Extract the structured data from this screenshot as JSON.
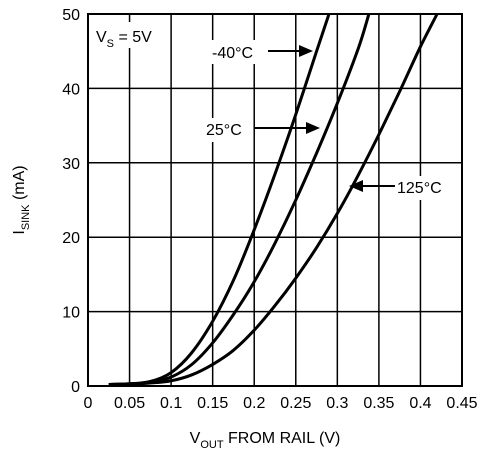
{
  "chart_data": {
    "type": "line",
    "xlim": [
      0,
      0.45
    ],
    "ylim": [
      0,
      50
    ],
    "x_ticks": [
      "0",
      "0.05",
      "0.1",
      "0.15",
      "0.2",
      "0.25",
      "0.3",
      "0.35",
      "0.4",
      "0.45"
    ],
    "y_ticks": [
      "0",
      "10",
      "20",
      "30",
      "40",
      "50"
    ],
    "xlabel": {
      "main": "V",
      "sub": "OUT",
      "rest": " FROM RAIL (V)"
    },
    "ylabel": {
      "main": "I",
      "sub": "SINK",
      "rest": " (mA)"
    },
    "grid": true,
    "condition": {
      "main": "V",
      "sub": "S",
      "rest": " = 5V"
    },
    "series": [
      {
        "name": "-40°C",
        "points": [
          [
            0.025,
            0.2
          ],
          [
            0.05,
            0.3
          ],
          [
            0.075,
            0.6
          ],
          [
            0.1,
            1.8
          ],
          [
            0.125,
            4.5
          ],
          [
            0.15,
            8.7
          ],
          [
            0.175,
            14.2
          ],
          [
            0.2,
            21
          ],
          [
            0.225,
            28.5
          ],
          [
            0.25,
            36.5
          ],
          [
            0.275,
            45
          ],
          [
            0.29,
            50
          ]
        ]
      },
      {
        "name": "25°C",
        "points": [
          [
            0.025,
            0.2
          ],
          [
            0.05,
            0.3
          ],
          [
            0.075,
            0.5
          ],
          [
            0.1,
            1.2
          ],
          [
            0.125,
            2.9
          ],
          [
            0.15,
            5.8
          ],
          [
            0.175,
            9.6
          ],
          [
            0.2,
            14
          ],
          [
            0.225,
            19.2
          ],
          [
            0.25,
            25
          ],
          [
            0.275,
            31.3
          ],
          [
            0.3,
            38
          ],
          [
            0.325,
            45.3
          ],
          [
            0.338,
            50
          ]
        ]
      },
      {
        "name": "125°C",
        "points": [
          [
            0.025,
            0.2
          ],
          [
            0.05,
            0.25
          ],
          [
            0.075,
            0.4
          ],
          [
            0.1,
            0.7
          ],
          [
            0.125,
            1.5
          ],
          [
            0.15,
            2.9
          ],
          [
            0.175,
            4.8
          ],
          [
            0.2,
            7.5
          ],
          [
            0.225,
            10.8
          ],
          [
            0.25,
            14.5
          ],
          [
            0.275,
            18.6
          ],
          [
            0.3,
            23.2
          ],
          [
            0.325,
            28.3
          ],
          [
            0.35,
            33.8
          ],
          [
            0.375,
            39.6
          ],
          [
            0.4,
            45.6
          ],
          [
            0.42,
            50
          ]
        ]
      }
    ]
  }
}
